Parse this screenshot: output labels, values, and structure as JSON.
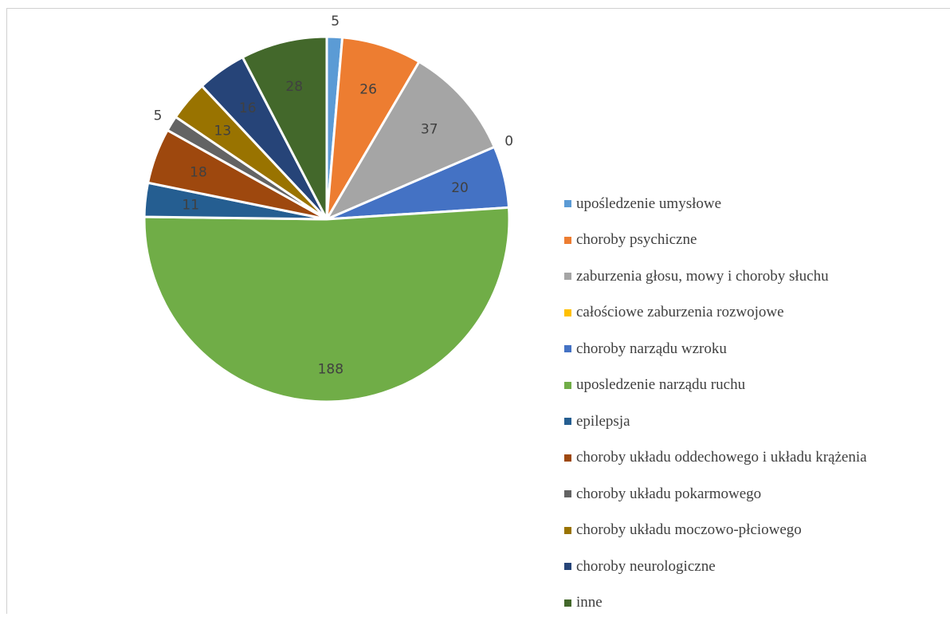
{
  "header": {
    "title": ""
  },
  "chart_data": {
    "type": "pie",
    "title": "",
    "legend_position": "right",
    "categories": [
      "upośledzenie umysłowe",
      "choroby psychiczne",
      "zaburzenia głosu, mowy i choroby słuchu",
      "całościowe zaburzenia rozwojowe",
      "choroby narządu wzroku",
      "uposledzenie narządu ruchu",
      "epilepsja",
      "choroby układu oddechowego i układu krążenia",
      "choroby układu pokarmowego",
      "choroby układu moczowo-płciowego",
      "choroby neurologiczne",
      "inne"
    ],
    "values": [
      5,
      26,
      37,
      0,
      20,
      188,
      11,
      18,
      5,
      13,
      16,
      28
    ],
    "data_labels": [
      "5",
      "26",
      "37",
      "0",
      "20",
      "188",
      "11",
      "18",
      "5",
      "13",
      "16",
      "28"
    ],
    "colors": [
      "#5b9bd5",
      "#ed7d31",
      "#a5a5a5",
      "#ffc000",
      "#4472c4",
      "#70ad47",
      "#255e91",
      "#9e480e",
      "#636363",
      "#997300",
      "#264478",
      "#43682b"
    ]
  }
}
